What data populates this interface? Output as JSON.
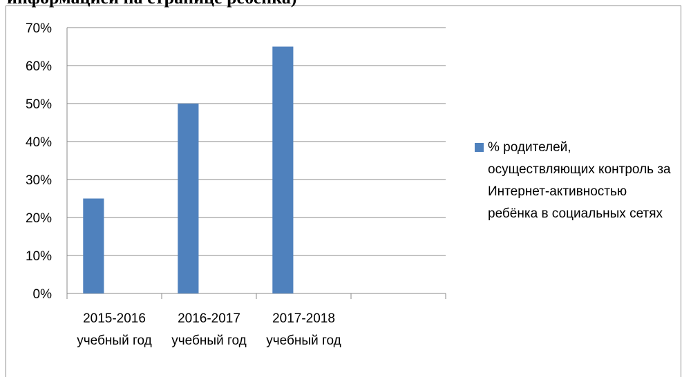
{
  "header_text": "информацией на странице ребенка)",
  "chart_data": {
    "type": "bar",
    "categories": [
      "2015-2016 учебный год",
      "2016-2017 учебный год",
      "2017-2018 учебный год",
      null
    ],
    "series": [
      {
        "name": "% родителей, осуществляющих контроль за Интернет-активностью ребёнка в социальных сетях",
        "color": "#4f81bd",
        "values": [
          25,
          50,
          65,
          null
        ]
      }
    ],
    "ylim": [
      0,
      70
    ],
    "yticks": [
      {
        "value": 0,
        "label": "0%"
      },
      {
        "value": 10,
        "label": "10%"
      },
      {
        "value": 20,
        "label": "20%"
      },
      {
        "value": 30,
        "label": "30%"
      },
      {
        "value": 40,
        "label": "40%"
      },
      {
        "value": 50,
        "label": "50%"
      },
      {
        "value": 60,
        "label": "60%"
      },
      {
        "value": 70,
        "label": "70%"
      }
    ],
    "grid": true,
    "legend": "right"
  }
}
